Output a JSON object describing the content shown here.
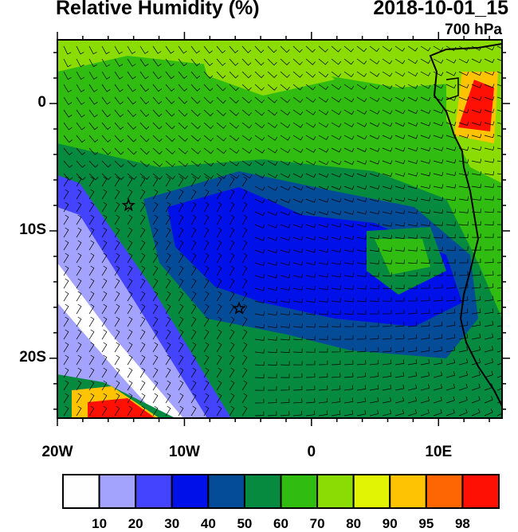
{
  "title": "Relative Humidity (%)",
  "time": "2018-10-01_15",
  "level": "700 hPa",
  "map": {
    "lon_range": [
      -20,
      15
    ],
    "lat_range": [
      -24.7,
      5
    ],
    "x_ticks": [
      {
        "lon": -20,
        "label": "20W"
      },
      {
        "lon": -10,
        "label": "10W"
      },
      {
        "lon": 0,
        "label": "0"
      },
      {
        "lon": 10,
        "label": "10E"
      }
    ],
    "y_ticks": [
      {
        "lat": 0,
        "label": "0"
      },
      {
        "lat": -10,
        "label": "10S"
      },
      {
        "lat": -20,
        "label": "20S"
      }
    ],
    "stars": [
      {
        "lon": -14.4,
        "lat": -8.0
      },
      {
        "lon": -5.7,
        "lat": -16.1
      }
    ]
  },
  "colorbar": {
    "colors": [
      "#fefefe",
      "#a3a3fe",
      "#4444fe",
      "#0010e8",
      "#044c98",
      "#068a40",
      "#30bc10",
      "#8adc04",
      "#e0f404",
      "#fec404",
      "#fe6604",
      "#fe1004"
    ],
    "labels": [
      "10",
      "20",
      "30",
      "40",
      "50",
      "60",
      "70",
      "80",
      "90",
      "95",
      "98"
    ]
  }
}
